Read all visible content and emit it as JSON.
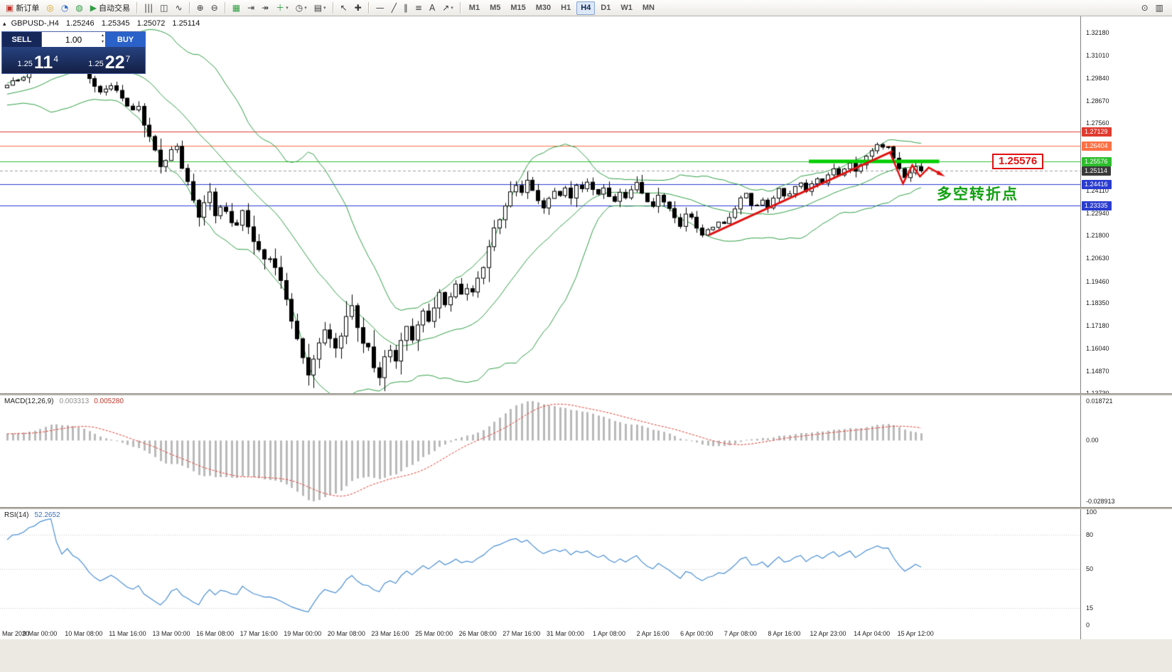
{
  "icons": {
    "caret": "▾",
    "collapse": "▴",
    "spin_up": "▴",
    "spin_down": "▾"
  },
  "toolbar": {
    "left": [
      {
        "name": "new-order-button",
        "glyph": "▣",
        "color": "#c2342a",
        "label": "新订单"
      },
      {
        "name": "navigator-button",
        "glyph": "◎",
        "color": "#d9a21b"
      },
      {
        "name": "profile-button",
        "glyph": "◔",
        "color": "#2f6fd0"
      },
      {
        "name": "community-button",
        "glyph": "◍",
        "color": "#2f9e44"
      },
      {
        "name": "autotrading-button",
        "glyph": "▶",
        "color": "#2f9e44",
        "label": "自动交易"
      },
      {
        "sep": true
      },
      {
        "name": "bar-chart-button",
        "glyph": "|||"
      },
      {
        "name": "candlestick-chart-button",
        "glyph": "◫"
      },
      {
        "name": "line-chart-button",
        "glyph": "∿"
      },
      {
        "sep": true
      },
      {
        "name": "zoom-in-button",
        "glyph": "⊕"
      },
      {
        "name": "zoom-out-button",
        "glyph": "⊖"
      },
      {
        "sep": true
      },
      {
        "name": "tile-windows-button",
        "glyph": "▦",
        "color": "#2f9e44"
      },
      {
        "name": "chart-shift-button",
        "glyph": "⇥"
      },
      {
        "name": "auto-scroll-button",
        "glyph": "↠"
      },
      {
        "name": "indicators-button",
        "glyph": "＋",
        "color": "#2f9e44",
        "caret": true
      },
      {
        "name": "periods-button",
        "glyph": "◷",
        "caret": true
      },
      {
        "name": "templates-button",
        "glyph": "▤",
        "caret": true
      },
      {
        "sep": true
      },
      {
        "name": "cursor-button",
        "glyph": "↖"
      },
      {
        "name": "crosshair-button",
        "glyph": "✚"
      },
      {
        "sep": true
      },
      {
        "name": "horizontal-line-button",
        "glyph": "—"
      },
      {
        "name": "trendline-button",
        "glyph": "╱"
      },
      {
        "name": "channel-button",
        "glyph": "∥"
      },
      {
        "name": "fibonacci-button",
        "glyph": "≡"
      },
      {
        "name": "text-button",
        "glyph": "A"
      },
      {
        "name": "arrows-button",
        "glyph": "↗",
        "caret": true
      },
      {
        "sep": true
      }
    ],
    "timeframes": [
      "M1",
      "M5",
      "M15",
      "M30",
      "H1",
      "H4",
      "D1",
      "W1",
      "MN"
    ],
    "active_timeframe": "H4",
    "right": [
      {
        "name": "search-button",
        "glyph": "⊙"
      },
      {
        "name": "window-list-button",
        "glyph": "▥"
      }
    ]
  },
  "chart_header": {
    "symbol_period": "GBPUSD-,H4",
    "open": "1.25246",
    "high": "1.25345",
    "low": "1.25072",
    "close": "1.25114"
  },
  "trade_panel": {
    "sell_label": "SELL",
    "buy_label": "BUY",
    "lot_size": "1.00",
    "bid_prefix": "1.25",
    "bid_big": "11",
    "bid_sup": "4",
    "ask_prefix": "1.25",
    "ask_big": "22",
    "ask_sup": "7"
  },
  "annotations": {
    "turning_point_text": "多空转折点",
    "price_callout": "1.25576"
  },
  "chart_data": {
    "type": "candlestick",
    "symbol": "GBPUSD-",
    "timeframe": "H4",
    "last_ohlc": {
      "open": 1.25246,
      "high": 1.25345,
      "low": 1.25072,
      "close": 1.25114
    },
    "candle_count": 168,
    "close_keypoints": [
      [
        -40,
        1.283
      ],
      [
        -32,
        1.2762
      ],
      [
        -24,
        1.2808
      ],
      [
        -16,
        1.2872
      ],
      [
        -8,
        1.2915
      ],
      [
        0,
        1.2945
      ],
      [
        3,
        1.2992
      ],
      [
        5,
        1.3048
      ],
      [
        6,
        1.3115
      ],
      [
        8,
        1.3185
      ],
      [
        10,
        1.3062
      ],
      [
        11,
        1.311
      ],
      [
        13,
        1.3072
      ],
      [
        15,
        1.2992
      ],
      [
        17,
        1.2905
      ],
      [
        19,
        1.2948
      ],
      [
        21,
        1.2882
      ],
      [
        23,
        1.2825
      ],
      [
        24,
        1.2838
      ],
      [
        26,
        1.2682
      ],
      [
        27,
        1.2592
      ],
      [
        28,
        1.2532
      ],
      [
        29,
        1.2568
      ],
      [
        31,
        1.2648
      ],
      [
        32,
        1.2548
      ],
      [
        33,
        1.2452
      ],
      [
        34,
        1.2355
      ],
      [
        35,
        1.2282
      ],
      [
        37,
        1.2382
      ],
      [
        38,
        1.2292
      ],
      [
        39,
        1.2332
      ],
      [
        41,
        1.2265
      ],
      [
        42,
        1.2248
      ],
      [
        43,
        1.2292
      ],
      [
        44,
        1.2218
      ],
      [
        45,
        1.2152
      ],
      [
        46,
        1.2088
      ],
      [
        47,
        1.2052
      ],
      [
        48,
        1.2082
      ],
      [
        49,
        1.2022
      ],
      [
        50,
        1.1948
      ],
      [
        51,
        1.1872
      ],
      [
        52,
        1.1742
      ],
      [
        53,
        1.1628
      ],
      [
        54,
        1.1552
      ],
      [
        55,
        1.1468
      ],
      [
        56,
        1.1532
      ],
      [
        57,
        1.1638
      ],
      [
        58,
        1.1722
      ],
      [
        59,
        1.1652
      ],
      [
        60,
        1.1602
      ],
      [
        62,
        1.1752
      ],
      [
        63,
        1.1798
      ],
      [
        65,
        1.1632
      ],
      [
        66,
        1.1602
      ],
      [
        67,
        1.1522
      ],
      [
        68,
        1.1472
      ],
      [
        69,
        1.1548
      ],
      [
        70,
        1.1588
      ],
      [
        71,
        1.1542
      ],
      [
        73,
        1.1702
      ],
      [
        74,
        1.1662
      ],
      [
        76,
        1.1792
      ],
      [
        77,
        1.1762
      ],
      [
        79,
        1.1868
      ],
      [
        80,
        1.1822
      ],
      [
        82,
        1.1912
      ],
      [
        83,
        1.1882
      ],
      [
        84,
        1.1932
      ],
      [
        85,
        1.1892
      ],
      [
        87,
        1.2032
      ],
      [
        89,
        1.2195
      ],
      [
        91,
        1.2332
      ],
      [
        93,
        1.2452
      ],
      [
        94,
        1.2422
      ],
      [
        95,
        1.2456
      ],
      [
        97,
        1.2362
      ],
      [
        98,
        1.2312
      ],
      [
        100,
        1.2412
      ],
      [
        101,
        1.2386
      ],
      [
        102,
        1.2422
      ],
      [
        103,
        1.2382
      ],
      [
        104,
        1.2442
      ],
      [
        105,
        1.2412
      ],
      [
        106,
        1.2452
      ],
      [
        107,
        1.2416
      ],
      [
        108,
        1.2382
      ],
      [
        109,
        1.2422
      ],
      [
        111,
        1.2356
      ],
      [
        112,
        1.2402
      ],
      [
        113,
        1.2382
      ],
      [
        115,
        1.2442
      ],
      [
        117,
        1.2352
      ],
      [
        118,
        1.2322
      ],
      [
        119,
        1.2392
      ],
      [
        120,
        1.2362
      ],
      [
        122,
        1.2272
      ],
      [
        123,
        1.2232
      ],
      [
        124,
        1.2282
      ],
      [
        125,
        1.2265
      ],
      [
        126,
        1.2222
      ],
      [
        127,
        1.2182
      ],
      [
        129,
        1.2232
      ],
      [
        130,
        1.2256
      ],
      [
        131,
        1.2236
      ],
      [
        132,
        1.2272
      ],
      [
        134,
        1.2362
      ],
      [
        135,
        1.2392
      ],
      [
        136,
        1.2342
      ],
      [
        137,
        1.2336
      ],
      [
        138,
        1.2362
      ],
      [
        139,
        1.2332
      ],
      [
        141,
        1.2412
      ],
      [
        142,
        1.2382
      ],
      [
        143,
        1.2392
      ],
      [
        145,
        1.2452
      ],
      [
        146,
        1.2416
      ],
      [
        148,
        1.2472
      ],
      [
        149,
        1.2456
      ],
      [
        151,
        1.2512
      ],
      [
        152,
        1.2492
      ],
      [
        154,
        1.2546
      ],
      [
        155,
        1.2518
      ],
      [
        157,
        1.2582
      ],
      [
        159,
        1.2648
      ],
      [
        160,
        1.2622
      ],
      [
        161,
        1.2628
      ],
      [
        162,
        1.2582
      ],
      [
        163,
        1.2522
      ],
      [
        164,
        1.2476
      ],
      [
        165,
        1.2512
      ],
      [
        166,
        1.2536
      ],
      [
        167,
        1.25114
      ]
    ],
    "wick_overrides": {
      "8": {
        "h": 1.32
      },
      "55": {
        "l": 1.1412
      },
      "68": {
        "l": 1.1466
      },
      "159": {
        "h": 1.2656
      },
      "164": {
        "l": 1.247
      }
    },
    "bollinger": {
      "period": 20,
      "deviation": 2,
      "color": "#2f9e44"
    },
    "horizontal_levels": [
      {
        "price": 1.27129,
        "label": "1.27129",
        "color": "#e03a2f"
      },
      {
        "price": 1.26404,
        "label": "1.26404",
        "color": "#ff7043"
      },
      {
        "price": 1.25576,
        "label": "1.25576",
        "color": "#2dbd2d"
      },
      {
        "price": 1.24416,
        "label": "1.24416",
        "color": "#2a3cd0"
      },
      {
        "price": 1.23335,
        "label": "1.23335",
        "color": "#2a3cd0"
      }
    ],
    "bid_line": {
      "price": 1.25114,
      "label": "1.25114",
      "color": "#3a3a3a"
    },
    "resistance_zone": {
      "i1": 146.5,
      "i2": 170.3,
      "price": 1.25576,
      "color": "#00ce00"
    },
    "trendline": {
      "from": [
        128.2,
        1.2182
      ],
      "to": [
        161.8,
        1.2612
      ],
      "color": "#e01010"
    },
    "zigzag_arrow": {
      "color": "#e01010",
      "points": [
        [
          161.3,
          1.2608
        ],
        [
          163.7,
          1.2446
        ],
        [
          165.4,
          1.254
        ],
        [
          166.8,
          1.2482
        ],
        [
          168.4,
          1.2528
        ],
        [
          170.6,
          1.2494
        ]
      ]
    },
    "macd": {
      "label": "MACD(12,26,9)",
      "fast": 12,
      "slow": 26,
      "signal": 9,
      "current": "0.003313",
      "signal_current": "0.005280",
      "axis_max": "0.018721",
      "axis_zero": "0.00",
      "axis_min": "-0.028913",
      "histogram_color": "#b9b9b9",
      "signal_color": "#e23b2e"
    },
    "rsi": {
      "label": "RSI(14)",
      "period": 14,
      "current": "52.2652",
      "levels": [
        80,
        50,
        15
      ],
      "axis": [
        "100",
        "80",
        "50",
        "15",
        "0"
      ],
      "line_color": "#4a8fd4"
    },
    "price_axis_labels": [
      "1.32180",
      "1.31010",
      "1.29840",
      "1.28670",
      "1.27560",
      "1.26390",
      "1.25220",
      "1.24110",
      "1.22940",
      "1.21800",
      "1.20630",
      "1.19460",
      "1.18350",
      "1.17180",
      "1.16040",
      "1.14870",
      "1.13730"
    ],
    "time_axis": [
      {
        "i": 0,
        "label": "Mar 2020"
      },
      {
        "i": 6,
        "label": "9 Mar 00:00"
      },
      {
        "i": 14,
        "label": "10 Mar 08:00"
      },
      {
        "i": 22,
        "label": "11 Mar 16:00"
      },
      {
        "i": 30,
        "label": "13 Mar 00:00"
      },
      {
        "i": 38,
        "label": "16 Mar 08:00"
      },
      {
        "i": 46,
        "label": "17 Mar 16:00"
      },
      {
        "i": 54,
        "label": "19 Mar 00:00"
      },
      {
        "i": 62,
        "label": "20 Mar 08:00"
      },
      {
        "i": 70,
        "label": "23 Mar 16:00"
      },
      {
        "i": 78,
        "label": "25 Mar 00:00"
      },
      {
        "i": 86,
        "label": "26 Mar 08:00"
      },
      {
        "i": 94,
        "label": "27 Mar 16:00"
      },
      {
        "i": 102,
        "label": "31 Mar 00:00"
      },
      {
        "i": 110,
        "label": "1 Apr 08:00"
      },
      {
        "i": 118,
        "label": "2 Apr 16:00"
      },
      {
        "i": 126,
        "label": "6 Apr 00:00"
      },
      {
        "i": 134,
        "label": "7 Apr 08:00"
      },
      {
        "i": 142,
        "label": "8 Apr 16:00"
      },
      {
        "i": 150,
        "label": "12 Apr 23:00"
      },
      {
        "i": 158,
        "label": "14 Apr 04:00"
      },
      {
        "i": 166,
        "label": "15 Apr 12:00"
      }
    ]
  }
}
